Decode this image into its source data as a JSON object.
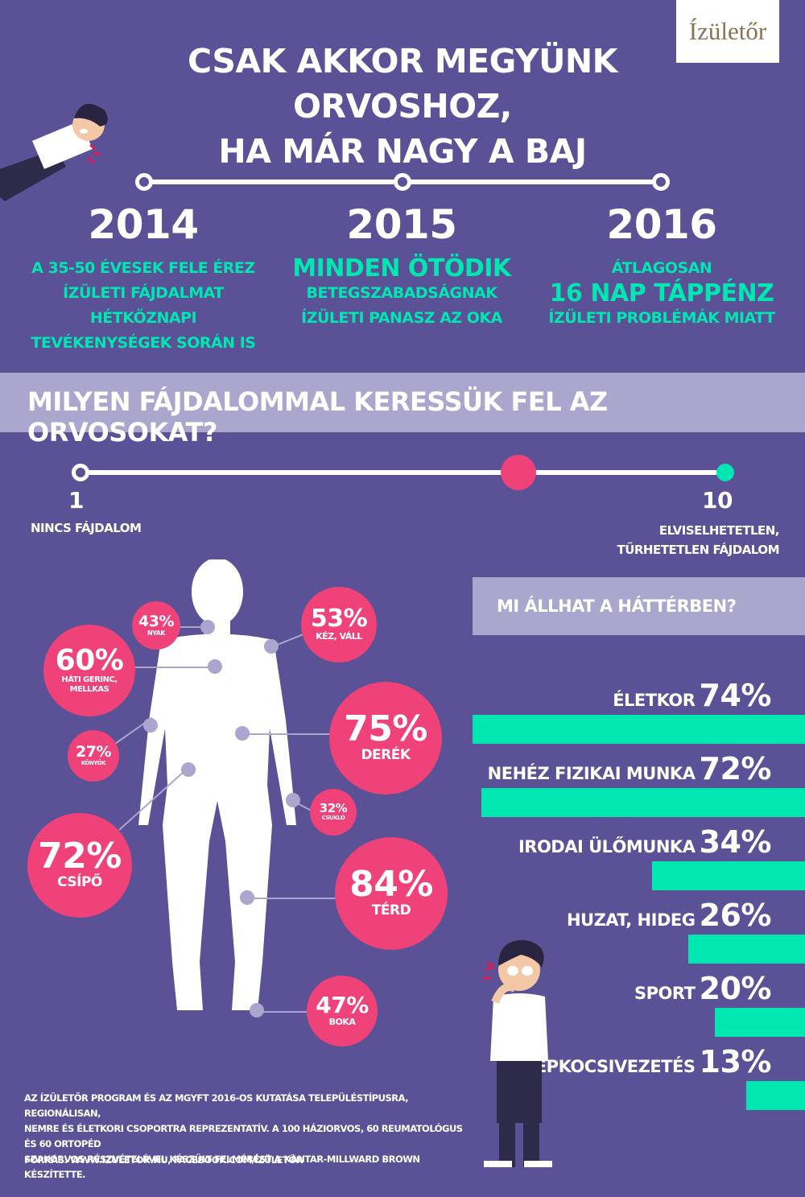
{
  "logo": "Ízületőr",
  "headline": [
    "CSAK AKKOR MEGYÜNK ORVOSHOZ,",
    "HA MÁR NAGY A BAJ"
  ],
  "timeline": [
    {
      "year": "2014",
      "lines": [
        "A 35-50 ÉVESEK FELE ÉREZ",
        "ÍZÜLETI FÁJDALMAT HÉTKÖZNAPI",
        "TEVÉKENYSÉGEK SORÁN IS"
      ]
    },
    {
      "year": "2015",
      "lines": [
        "MINDEN ÖTÖDIK",
        "BETEGSZABADSÁGNAK",
        "ÍZÜLETI PANASZ AZ OKA"
      ]
    },
    {
      "year": "2016",
      "lines": [
        "ÁTLAGOSAN",
        "16 NAP TÁPPÉNZ",
        "ÍZÜLETI PROBLÉMÁK MIATT"
      ]
    }
  ],
  "section_title": "MILYEN FÁJDALOMMAL KERESSÜK FEL AZ ORVOSOKAT?",
  "pain_scale": {
    "min_value": "1",
    "min_label": "NINCS FÁJDALOM",
    "max_value": "10",
    "max_label": [
      "ELVISELHETETLEN,",
      "TŰRHETETLEN FÁJDALOM"
    ],
    "marker_position": 0.68,
    "colors": {
      "line": "#ffffff",
      "marker": "#ef4279",
      "end": "#00e7b2"
    }
  },
  "body_parts": [
    {
      "pct": "43%",
      "label": "NYAK"
    },
    {
      "pct": "53%",
      "label": "KÉZ, VÁLL"
    },
    {
      "pct": "60%",
      "label": "HÁTI GERINC, MELLKAS"
    },
    {
      "pct": "75%",
      "label": "DERÉK"
    },
    {
      "pct": "27%",
      "label": "KÖNYÖK"
    },
    {
      "pct": "32%",
      "label": "CSUKLÓ"
    },
    {
      "pct": "72%",
      "label": "CSÍPŐ"
    },
    {
      "pct": "84%",
      "label": "TÉRD"
    },
    {
      "pct": "47%",
      "label": "BOKA"
    }
  ],
  "causes": {
    "title": "MI ÁLLHAT A HÁTTÉRBEN?",
    "items": [
      {
        "name": "ÉLETKOR",
        "value": "74%",
        "fraction": 0.74
      },
      {
        "name": "NEHÉZ FIZIKAI MUNKA",
        "value": "72%",
        "fraction": 0.72
      },
      {
        "name": "IRODAI ÜLŐMUNKA",
        "value": "34%",
        "fraction": 0.34
      },
      {
        "name": "HUZAT, HIDEG",
        "value": "26%",
        "fraction": 0.26
      },
      {
        "name": "SPORT",
        "value": "20%",
        "fraction": 0.2
      },
      {
        "name": "GÉPKOCSIVEZETÉS",
        "value": "13%",
        "fraction": 0.13
      }
    ]
  },
  "footnote": [
    "AZ ÍZÜLETŐR PROGRAM ÉS AZ MGYFT 2016-OS KUTATÁSA TELEPÜLÉSTÍPUSRA, REGIONÁLISAN,",
    "NEMRE ÉS ÉLETKORI CSOPORTRA REPREZENTATÍV. A 100 HÁZIORVOS, 60 REUMATOLÓGUS ÉS 60 ORTOPÉD",
    "SZAKORVOS RÉSZVÉTELÉVEL KÉSZÜLT FELMÉRÉST A KANTAR-MILLWARD BROWN KÉSZÍTETTE."
  ],
  "source": "FORRÁS: WWW.IZULETOR.HU, FACEBOOK.COM/ÍZÜLETŐR",
  "colors": {
    "background": "#5a5197",
    "accent_green": "#00e7b2",
    "accent_pink": "#ef4279",
    "lavender": "#aaa6cd"
  }
}
